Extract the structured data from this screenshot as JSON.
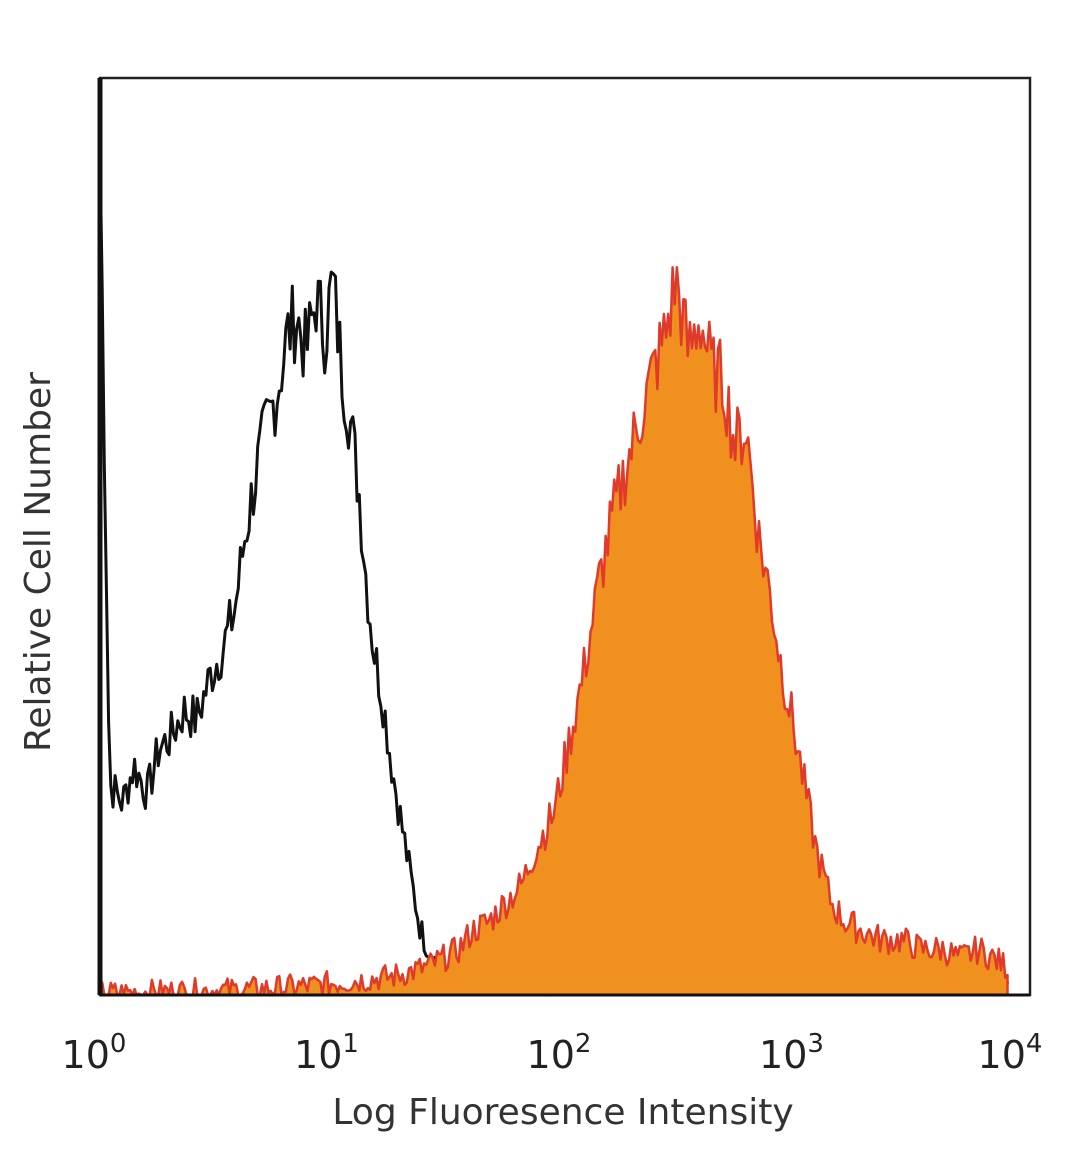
{
  "chart_data": {
    "type": "area",
    "xlabel": "Log Fluoresence Intensity",
    "ylabel": "Relative Cell Number",
    "x_scale": "log",
    "xlim": [
      1,
      10000
    ],
    "ylim": [
      0,
      1
    ],
    "x_ticks": [
      {
        "base": "10",
        "exp": "0"
      },
      {
        "base": "10",
        "exp": "1"
      },
      {
        "base": "10",
        "exp": "2"
      },
      {
        "base": "10",
        "exp": "3"
      },
      {
        "base": "10",
        "exp": "4"
      }
    ],
    "colors": {
      "isotype_line": "#111111",
      "stained_fill": "#f0901e",
      "stained_line": "#e03a2a"
    },
    "series": [
      {
        "style": "outline",
        "color": "#111111",
        "x": [
          1.0,
          1.1,
          1.25,
          1.4,
          1.6,
          1.8,
          2.0,
          2.3,
          2.6,
          3.0,
          3.4,
          3.8,
          4.2,
          4.7,
          5.2,
          5.8,
          6.4,
          7.0,
          7.7,
          8.5,
          9.3,
          10.0,
          11.0,
          12.0,
          13.0,
          14.0,
          15.0,
          16.5,
          18.0,
          20.0,
          22.0,
          24.0,
          27.0,
          30.0,
          33.0,
          37.0,
          42.0,
          50.0,
          70.0,
          100.0,
          200.0,
          500.0,
          1000.0,
          2000.0,
          5000.0,
          8000.0
        ],
        "y": [
          0.92,
          0.23,
          0.21,
          0.25,
          0.22,
          0.27,
          0.28,
          0.31,
          0.3,
          0.35,
          0.38,
          0.42,
          0.5,
          0.57,
          0.62,
          0.66,
          0.72,
          0.74,
          0.7,
          0.76,
          0.72,
          0.78,
          0.68,
          0.62,
          0.55,
          0.45,
          0.38,
          0.32,
          0.25,
          0.18,
          0.12,
          0.07,
          0.04,
          0.03,
          0.02,
          0.015,
          0.01,
          0.008,
          0.005,
          0.004,
          0.003,
          0.003,
          0.003,
          0.002,
          0.002,
          0.002
        ]
      },
      {
        "style": "filled",
        "color": "#f0901e",
        "x": [
          1.0,
          1.5,
          2.0,
          3.0,
          5.0,
          8.0,
          12.0,
          18.0,
          25.0,
          30.0,
          35.0,
          40.0,
          47.0,
          55.0,
          65.0,
          75.0,
          90.0,
          105.0,
          120.0,
          140.0,
          160.0,
          185.0,
          210.0,
          240.0,
          270.0,
          300.0,
          340.0,
          380.0,
          430.0,
          480.0,
          540.0,
          600.0,
          680.0,
          760.0,
          850.0,
          950.0,
          1050.0,
          1200.0,
          1400.0,
          1600.0,
          1900.0,
          2300.0,
          2800.0,
          3400.0,
          4200.0,
          5000.0,
          6000.0,
          7000.0,
          8000.0
        ],
        "y": [
          0.002,
          0.003,
          0.004,
          0.005,
          0.007,
          0.01,
          0.015,
          0.02,
          0.03,
          0.04,
          0.05,
          0.07,
          0.08,
          0.1,
          0.12,
          0.16,
          0.2,
          0.28,
          0.35,
          0.45,
          0.52,
          0.58,
          0.63,
          0.68,
          0.72,
          0.78,
          0.7,
          0.74,
          0.68,
          0.67,
          0.6,
          0.62,
          0.5,
          0.44,
          0.36,
          0.3,
          0.24,
          0.16,
          0.1,
          0.08,
          0.07,
          0.06,
          0.06,
          0.05,
          0.05,
          0.04,
          0.05,
          0.04,
          0.03
        ]
      }
    ]
  }
}
